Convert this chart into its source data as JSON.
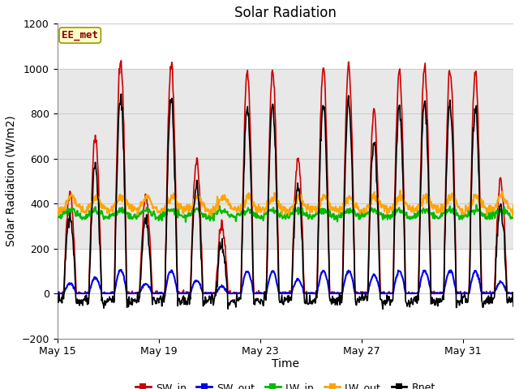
{
  "title": "Solar Radiation",
  "xlabel": "Time",
  "ylabel": "Solar Radiation (W/m2)",
  "ylim": [
    -200,
    1200
  ],
  "yticks": [
    -200,
    0,
    200,
    400,
    600,
    800,
    1000,
    1200
  ],
  "xtick_labels": [
    "May 15",
    "May 19",
    "May 23",
    "May 27",
    "May 31"
  ],
  "annotation_text": "EE_met",
  "annotation_color": "#8B0000",
  "annotation_bg": "#FFFFCC",
  "annotation_border": "#999900",
  "legend_entries": [
    "SW_in",
    "SW_out",
    "LW_in",
    "LW_out",
    "Rnet"
  ],
  "line_colors": {
    "SW_in": "#CC0000",
    "SW_out": "#0000EE",
    "LW_in": "#00BB00",
    "LW_out": "#FFA500",
    "Rnet": "#000000"
  },
  "line_widths": {
    "SW_in": 1.2,
    "SW_out": 1.5,
    "LW_in": 1.5,
    "LW_out": 1.5,
    "Rnet": 1.2
  },
  "bg_band_color": "#E8E8E8",
  "fig_bg": "#FFFFFF",
  "n_days": 18,
  "dt_minutes": 30,
  "start_day": 15
}
